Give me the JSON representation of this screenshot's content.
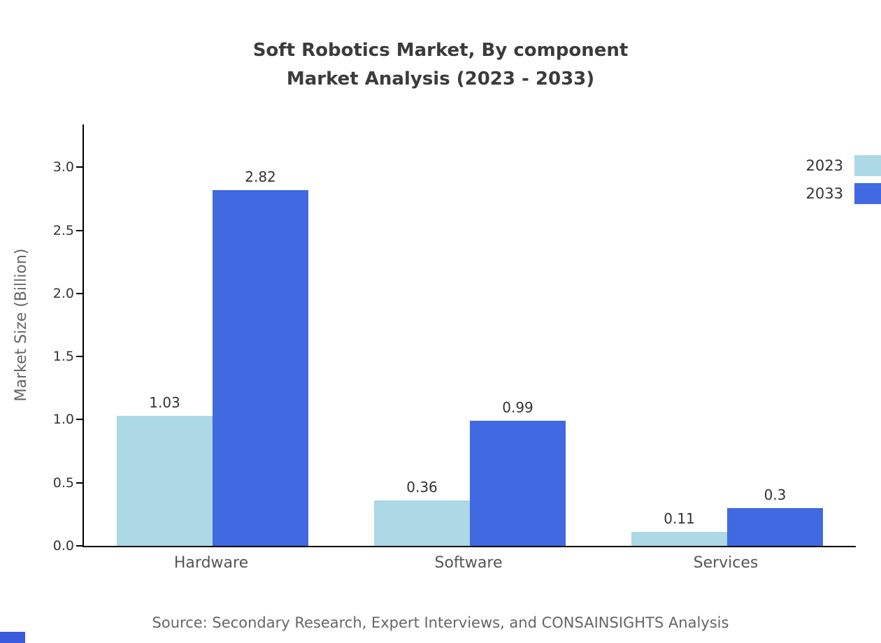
{
  "title": {
    "line1": "Soft Robotics Market, By component",
    "line2": "Market Analysis (2023 - 2033)"
  },
  "source_note": "Source: Secondary Research, Expert Interviews, and CONSAINSIGHTS Analysis",
  "colors": {
    "series_2023": "#ADD8E6",
    "series_2033": "#4169E1",
    "brand_mark": "#3A5BDB",
    "axis": "#000000"
  },
  "chart_data": {
    "type": "bar",
    "title": "Soft Robotics Market, By component Market Analysis (2023 - 2033)",
    "categories": [
      "Hardware",
      "Software",
      "Services"
    ],
    "series": [
      {
        "name": "2023",
        "color": "#ADD8E6",
        "values": [
          1.03,
          0.36,
          0.11
        ]
      },
      {
        "name": "2033",
        "color": "#4169E1",
        "values": [
          2.82,
          0.99,
          0.3
        ]
      }
    ],
    "xlabel": "",
    "ylabel": "Market Size (Billion)",
    "ytick_labels": [
      "0.0",
      "0.5",
      "1.0",
      "1.5",
      "2.0",
      "2.5",
      "3.0"
    ],
    "ytick_values": [
      0,
      0.5,
      1,
      1.5,
      2,
      2.5,
      3
    ],
    "ylim": [
      0,
      3.34
    ],
    "legend": [
      "2023",
      "2033"
    ],
    "legend_position": "top-right",
    "grid": false,
    "value_labels": true
  }
}
